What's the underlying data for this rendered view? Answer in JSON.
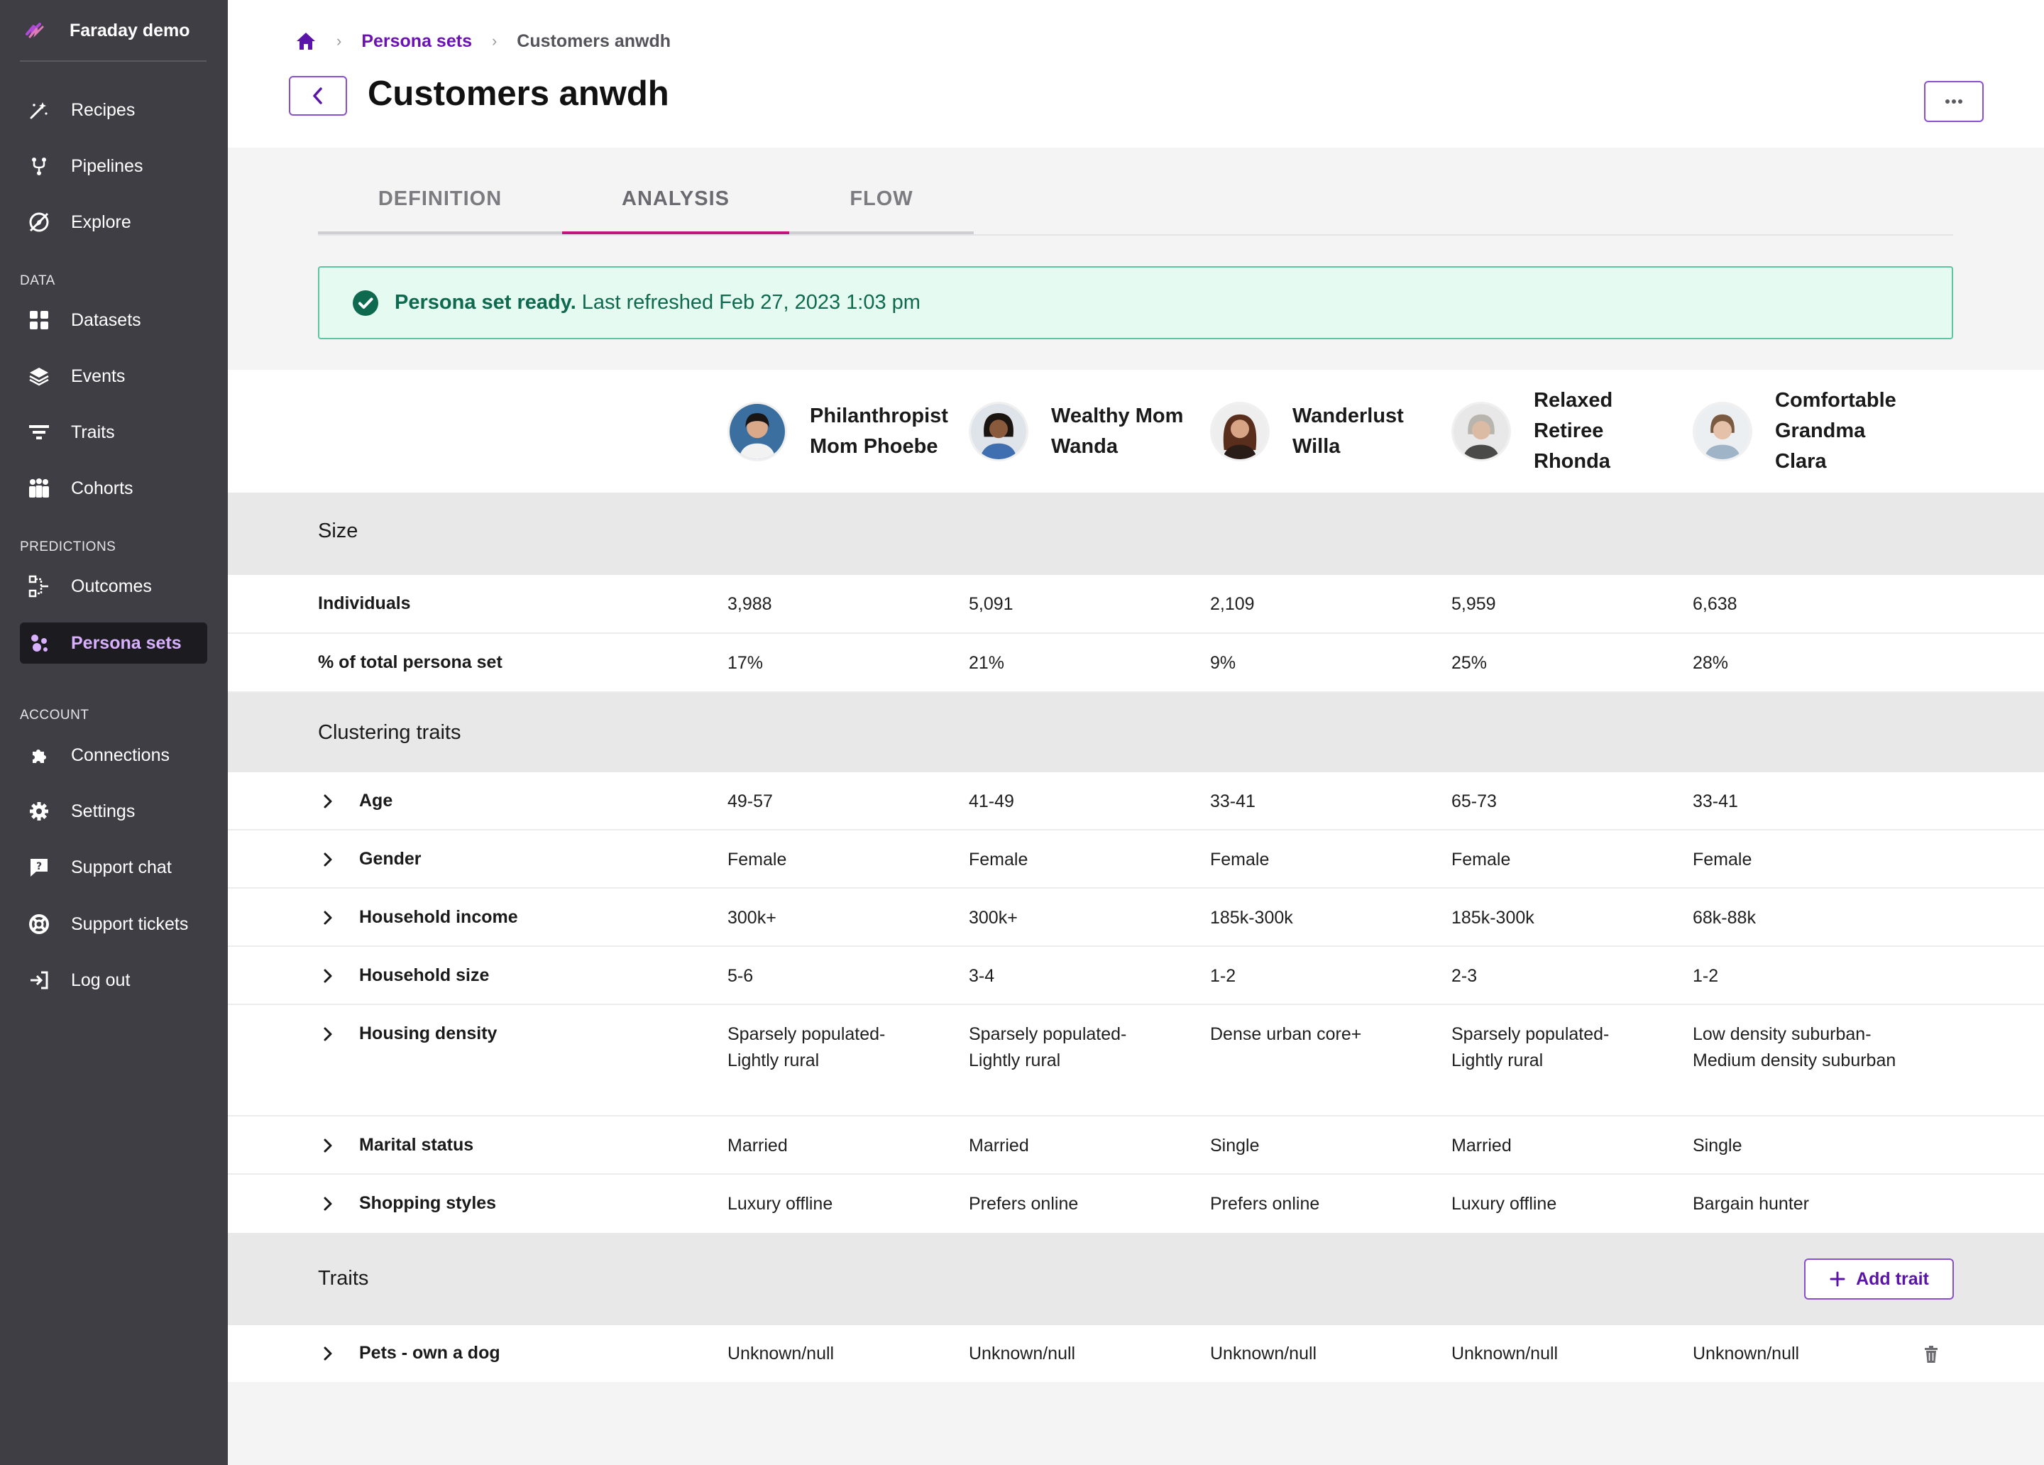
{
  "sidebar": {
    "brand": "Faraday demo",
    "items_top": [
      {
        "label": "Recipes",
        "icon": "magic-wand-icon"
      },
      {
        "label": "Pipelines",
        "icon": "pipeline-fork-icon"
      },
      {
        "label": "Explore",
        "icon": "compass-icon"
      }
    ],
    "section_data": "DATA",
    "items_data": [
      {
        "label": "Datasets",
        "icon": "grid-icon"
      },
      {
        "label": "Events",
        "icon": "layers-icon"
      },
      {
        "label": "Traits",
        "icon": "filter-icon"
      },
      {
        "label": "Cohorts",
        "icon": "people-icon"
      }
    ],
    "section_predictions": "PREDICTIONS",
    "items_predictions": [
      {
        "label": "Outcomes",
        "icon": "outcome-icon"
      },
      {
        "label": "Persona sets",
        "icon": "persona-icon",
        "active": true
      }
    ],
    "section_account": "ACCOUNT",
    "items_account": [
      {
        "label": "Connections",
        "icon": "puzzle-icon"
      },
      {
        "label": "Settings",
        "icon": "gear-icon"
      },
      {
        "label": "Support chat",
        "icon": "chat-icon"
      },
      {
        "label": "Support tickets",
        "icon": "lifebuoy-icon"
      },
      {
        "label": "Log out",
        "icon": "logout-icon"
      }
    ]
  },
  "breadcrumb": {
    "home_icon": "home-icon",
    "parent": "Persona sets",
    "current": "Customers anwdh"
  },
  "page": {
    "title": "Customers anwdh",
    "back_icon": "chevron-left-icon",
    "more_icon": "ellipsis-icon"
  },
  "tabs": [
    {
      "label": "DEFINITION",
      "active": false
    },
    {
      "label": "ANALYSIS",
      "active": true
    },
    {
      "label": "FLOW",
      "active": false
    }
  ],
  "banner": {
    "strong": "Persona set ready.",
    "rest": "Last refreshed Feb 27, 2023 1:03 pm",
    "icon": "check-circle-icon"
  },
  "personas": [
    {
      "name": "Philanthropist Mom Phoebe"
    },
    {
      "name": "Wealthy Mom Wanda"
    },
    {
      "name": "Wanderlust Willa"
    },
    {
      "name": "Relaxed Retiree Rhonda"
    },
    {
      "name": "Comfortable Grandma Clara"
    }
  ],
  "sections": {
    "size": "Size",
    "clustering": "Clustering traits",
    "traits": "Traits",
    "add_trait": "Add trait"
  },
  "size_rows": [
    {
      "label": "Individuals",
      "values": [
        "3,988",
        "5,091",
        "2,109",
        "5,959",
        "6,638"
      ]
    },
    {
      "label": "% of total persona set",
      "values": [
        "17%",
        "21%",
        "9%",
        "25%",
        "28%"
      ]
    }
  ],
  "clustering_rows": [
    {
      "label": "Age",
      "values": [
        "49-57",
        "41-49",
        "33-41",
        "65-73",
        "33-41"
      ]
    },
    {
      "label": "Gender",
      "values": [
        "Female",
        "Female",
        "Female",
        "Female",
        "Female"
      ]
    },
    {
      "label": "Household income",
      "values": [
        "300k+",
        "300k+",
        "185k-300k",
        "185k-300k",
        "68k-88k"
      ]
    },
    {
      "label": "Household size",
      "values": [
        "5-6",
        "3-4",
        "1-2",
        "2-3",
        "1-2"
      ]
    },
    {
      "label": "Housing density",
      "values": [
        "Sparsely populated-Lightly rural",
        "Sparsely populated-Lightly rural",
        "Dense urban core+",
        "Sparsely populated-Lightly rural",
        "Low density suburban-Medium density suburban"
      ]
    },
    {
      "label": "Marital status",
      "values": [
        "Married",
        "Married",
        "Single",
        "Married",
        "Single"
      ]
    },
    {
      "label": "Shopping styles",
      "values": [
        "Luxury offline",
        "Prefers online",
        "Prefers online",
        "Luxury offline",
        "Bargain hunter"
      ]
    }
  ],
  "trait_rows": [
    {
      "label": "Pets - own a dog",
      "values": [
        "Unknown/null",
        "Unknown/null",
        "Unknown/null",
        "Unknown/null",
        "Unknown/null"
      ]
    }
  ],
  "colors": {
    "accent": "#6c10b8",
    "tab_active": "#c0157e",
    "banner_bg": "#e5faf1",
    "banner_text": "#0e6a4e",
    "sidebar_bg": "#3f3e45"
  }
}
